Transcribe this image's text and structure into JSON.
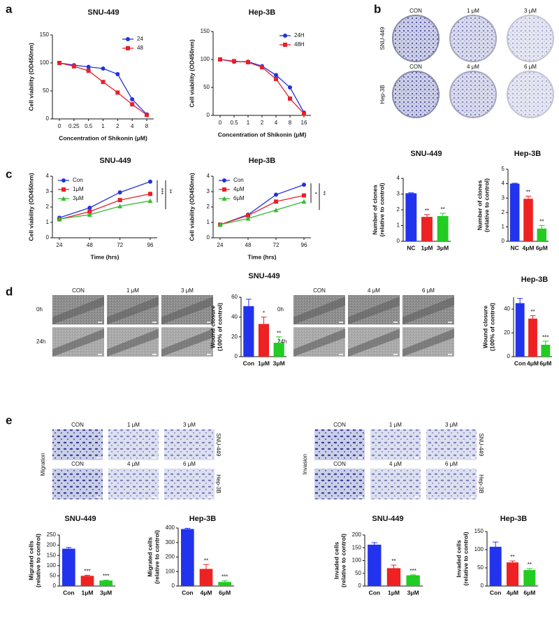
{
  "panels": [
    "a",
    "b",
    "c",
    "d",
    "e"
  ],
  "image_panels": [
    {
      "rows": [
        {
          "label": "SNU-449",
          "columns": [
            "CON",
            "1 μM",
            "3 μM"
          ]
        },
        {
          "label": "Hep-3B",
          "columns": [
            "CON",
            "4 μM",
            "6 μM"
          ]
        }
      ]
    },
    {
      "rows": [
        {
          "label": "0h",
          "columns": [
            "CON",
            "1 μM",
            "3 μM"
          ]
        },
        {
          "label": "24h"
        }
      ]
    },
    {
      "rows": [
        {
          "label": "0h",
          "columns": [
            "CON",
            "4 μM",
            "6 μM"
          ]
        },
        {
          "label": "24h"
        }
      ]
    },
    {
      "label": "Migration",
      "rows": [
        {
          "label": "SNU-449",
          "columns": [
            "CON",
            "1 μM",
            "3 μM"
          ]
        },
        {
          "label": "Hep-3B",
          "columns": [
            "CON",
            "4 μM",
            "6 μM"
          ]
        }
      ]
    },
    {
      "label": "Invasion",
      "rows": [
        {
          "label": "SNU-449",
          "columns": [
            "CON",
            "1 μM",
            "3 μM"
          ]
        },
        {
          "label": "Hep-3B",
          "columns": [
            "CON",
            "4 μM",
            "6 μM"
          ]
        }
      ]
    }
  ],
  "chart_data": [
    {
      "type": "line",
      "title": "SNU-449",
      "xlabel": "Concentration of Shikonin (μM)",
      "ylabel": [
        "Cell viability (OD450nm)"
      ],
      "categories": [
        "0",
        "0.25",
        "0.5",
        "1",
        "2",
        "4",
        "8"
      ],
      "ylim": [
        0,
        150
      ],
      "yticks": [
        0,
        50,
        100,
        150
      ],
      "legend": "upper right",
      "series": [
        {
          "name": "24",
          "color": "#2233dd",
          "marker": "circle",
          "values": [
            100,
            96,
            93,
            90,
            80,
            35,
            8
          ]
        },
        {
          "name": "48",
          "color": "#e8202a",
          "marker": "square",
          "values": [
            100,
            94,
            86,
            66,
            47,
            26,
            7
          ]
        }
      ]
    },
    {
      "type": "line",
      "title": "Hep-3B",
      "xlabel": "Concentration of Shikonin (μM)",
      "ylabel": [
        "Cell viability (OD450nm)"
      ],
      "categories": [
        "0",
        "0.5",
        "1",
        "2",
        "4",
        "8",
        "16"
      ],
      "ylim": [
        0,
        150
      ],
      "yticks": [
        0,
        50,
        100,
        150
      ],
      "legend": "upper right",
      "series": [
        {
          "name": "24H",
          "color": "#2233dd",
          "marker": "circle",
          "values": [
            100,
            96,
            96,
            88,
            72,
            50,
            5
          ]
        },
        {
          "name": "48H",
          "color": "#e8202a",
          "marker": "square",
          "values": [
            100,
            97,
            95,
            86,
            65,
            30,
            3
          ]
        }
      ]
    },
    {
      "type": "line",
      "title": "SNU-449",
      "xlabel": "Time (hrs)",
      "ylabel": [
        "Cell viability (OD450nm)"
      ],
      "categories": [
        "24",
        "48",
        "72",
        "96"
      ],
      "ylim": [
        0,
        4
      ],
      "yticks": [
        0,
        1,
        2,
        3,
        4
      ],
      "legend": "upper left",
      "significance": [
        "***",
        "**"
      ],
      "series": [
        {
          "name": "Con",
          "color": "#2233dd",
          "marker": "circle",
          "values": [
            1.3,
            1.95,
            2.95,
            3.65
          ]
        },
        {
          "name": "1μM",
          "color": "#e8202a",
          "marker": "square",
          "values": [
            1.2,
            1.7,
            2.45,
            2.85
          ]
        },
        {
          "name": "3μM",
          "color": "#33bb33",
          "marker": "triangle",
          "values": [
            1.22,
            1.5,
            2.05,
            2.4
          ]
        }
      ]
    },
    {
      "type": "line",
      "title": "Hep-3B",
      "xlabel": "Time (hrs)",
      "ylabel": [
        "Cell viability (OD450nm)"
      ],
      "categories": [
        "24",
        "48",
        "72",
        "96"
      ],
      "ylim": [
        0,
        4
      ],
      "yticks": [
        0,
        1,
        2,
        3,
        4
      ],
      "legend": "upper left",
      "significance": [
        "*",
        "**"
      ],
      "series": [
        {
          "name": "Con",
          "color": "#2233dd",
          "marker": "circle",
          "values": [
            0.85,
            1.5,
            2.8,
            3.45
          ]
        },
        {
          "name": "4μM",
          "color": "#e8202a",
          "marker": "square",
          "values": [
            0.85,
            1.45,
            2.35,
            2.75
          ]
        },
        {
          "name": "6μM",
          "color": "#33bb33",
          "marker": "triangle",
          "values": [
            0.85,
            1.25,
            1.8,
            2.35
          ]
        }
      ]
    },
    {
      "type": "bar",
      "title": "SNU-449",
      "ylabel": [
        "Number of clones",
        "(relative to control)"
      ],
      "categories": [
        "NC",
        "1μM",
        "3μM"
      ],
      "values": [
        3.05,
        1.55,
        1.6
      ],
      "errors": [
        0.03,
        0.15,
        0.18
      ],
      "significance": [
        null,
        "**",
        "**"
      ],
      "colors": [
        "#2233ee",
        "#ee2222",
        "#22cc22"
      ],
      "ylim": [
        0,
        4
      ],
      "yticks": [
        0,
        1,
        2,
        3,
        4
      ]
    },
    {
      "type": "bar",
      "title": "Hep-3B",
      "ylabel": [
        "Number of clones",
        "(relative to control)"
      ],
      "categories": [
        "NC",
        "4μM",
        "6μM"
      ],
      "values": [
        4.0,
        2.95,
        0.88
      ],
      "errors": [
        0.03,
        0.18,
        0.22
      ],
      "significance": [
        null,
        "**",
        "**"
      ],
      "colors": [
        "#2233ee",
        "#ee2222",
        "#22cc22"
      ],
      "ylim": [
        0,
        5
      ],
      "yticks": [
        0,
        1,
        2,
        3,
        4,
        5
      ]
    },
    {
      "type": "bar",
      "title": "SNU-449",
      "ylabel": [
        "Wound closure",
        "(100% of control)"
      ],
      "categories": [
        "Con",
        "1μM",
        "3μM"
      ],
      "values": [
        51,
        33,
        14
      ],
      "errors": [
        7,
        7,
        6
      ],
      "significance": [
        null,
        "*",
        "**"
      ],
      "colors": [
        "#2233ee",
        "#ee2222",
        "#22cc22"
      ],
      "ylim": [
        0,
        60
      ],
      "yticks": [
        0,
        20,
        40,
        60
      ]
    },
    {
      "type": "bar",
      "title": "Hep-3B",
      "ylabel": [
        "Wound closure",
        "(100% of control)"
      ],
      "categories": [
        "Con",
        "4μM",
        "6μM"
      ],
      "values": [
        45,
        32,
        10
      ],
      "errors": [
        4,
        2.5,
        3
      ],
      "significance": [
        null,
        "**",
        "***"
      ],
      "colors": [
        "#2233ee",
        "#ee2222",
        "#22cc22"
      ],
      "ylim": [
        0,
        50
      ],
      "yticks": [
        0,
        20,
        40
      ]
    },
    {
      "type": "bar",
      "title": "SNU-449",
      "ylabel": [
        "Migrated cells",
        "(relative to control)"
      ],
      "categories": [
        "Con",
        "1μM",
        "3μM"
      ],
      "values": [
        183,
        50,
        27
      ],
      "errors": [
        6,
        3,
        2
      ],
      "significance": [
        null,
        "***",
        "***"
      ],
      "colors": [
        "#2233ee",
        "#ee2222",
        "#22cc22"
      ],
      "ylim": [
        0,
        250
      ],
      "yticks": [
        0,
        50,
        100,
        150,
        200,
        250
      ]
    },
    {
      "type": "bar",
      "title": "Hep-3B",
      "ylabel": [
        "Migrated cells",
        "(relative to control)"
      ],
      "categories": [
        "Con",
        "4μM",
        "6μM"
      ],
      "values": [
        393,
        118,
        28
      ],
      "errors": [
        5,
        30,
        8
      ],
      "significance": [
        null,
        "**",
        "***"
      ],
      "colors": [
        "#2233ee",
        "#ee2222",
        "#22cc22"
      ],
      "ylim": [
        0,
        400
      ],
      "yticks": [
        0,
        100,
        200,
        300,
        400
      ]
    },
    {
      "type": "bar",
      "title": "SNU-449",
      "ylabel": [
        "Invaded cells",
        "(relative to control)"
      ],
      "categories": [
        "Con",
        "1μM",
        "3μM"
      ],
      "values": [
        162,
        70,
        42
      ],
      "errors": [
        8,
        12,
        2
      ],
      "significance": [
        null,
        "**",
        "***"
      ],
      "colors": [
        "#2233ee",
        "#ee2222",
        "#22cc22"
      ],
      "ylim": [
        0,
        200
      ],
      "yticks": [
        0,
        50,
        100,
        150,
        200
      ]
    },
    {
      "type": "bar",
      "title": "Hep-3B",
      "ylabel": [
        "Invaded cells",
        "(relative to control)"
      ],
      "categories": [
        "Con",
        "4μM",
        "6μM"
      ],
      "values": [
        108,
        65,
        44
      ],
      "errors": [
        13,
        4,
        4
      ],
      "significance": [
        null,
        "**",
        "**"
      ],
      "colors": [
        "#2233ee",
        "#ee2222",
        "#22cc22"
      ],
      "ylim": [
        0,
        150
      ],
      "yticks": [
        0,
        50,
        100,
        150
      ]
    }
  ]
}
